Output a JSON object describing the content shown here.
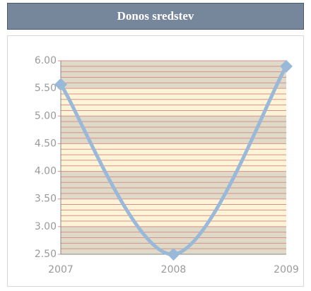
{
  "header": {
    "title": "Donos sredstev"
  },
  "chart_data": {
    "type": "line",
    "categories": [
      "2007",
      "2008",
      "2009"
    ],
    "series": [
      {
        "name": null,
        "color": "#9ab8d8",
        "values": [
          5.57,
          2.5,
          5.9
        ]
      }
    ],
    "ylim": [
      2.5,
      6.0
    ],
    "yticks": [
      {
        "value": 2.5,
        "label": "2.50"
      },
      {
        "value": 3.0,
        "label": "3.00"
      },
      {
        "value": 3.5,
        "label": "3.50"
      },
      {
        "value": 4.0,
        "label": "4.00"
      },
      {
        "value": 4.5,
        "label": "4.50"
      },
      {
        "value": 5.0,
        "label": "5.00"
      },
      {
        "value": 5.5,
        "label": "5.50"
      },
      {
        "value": 6.0,
        "label": "6.00"
      }
    ],
    "grid": true,
    "band_colors": [
      "#dfdac8",
      "#fdf4d8"
    ],
    "minor_grid_color": "#d9908a"
  }
}
